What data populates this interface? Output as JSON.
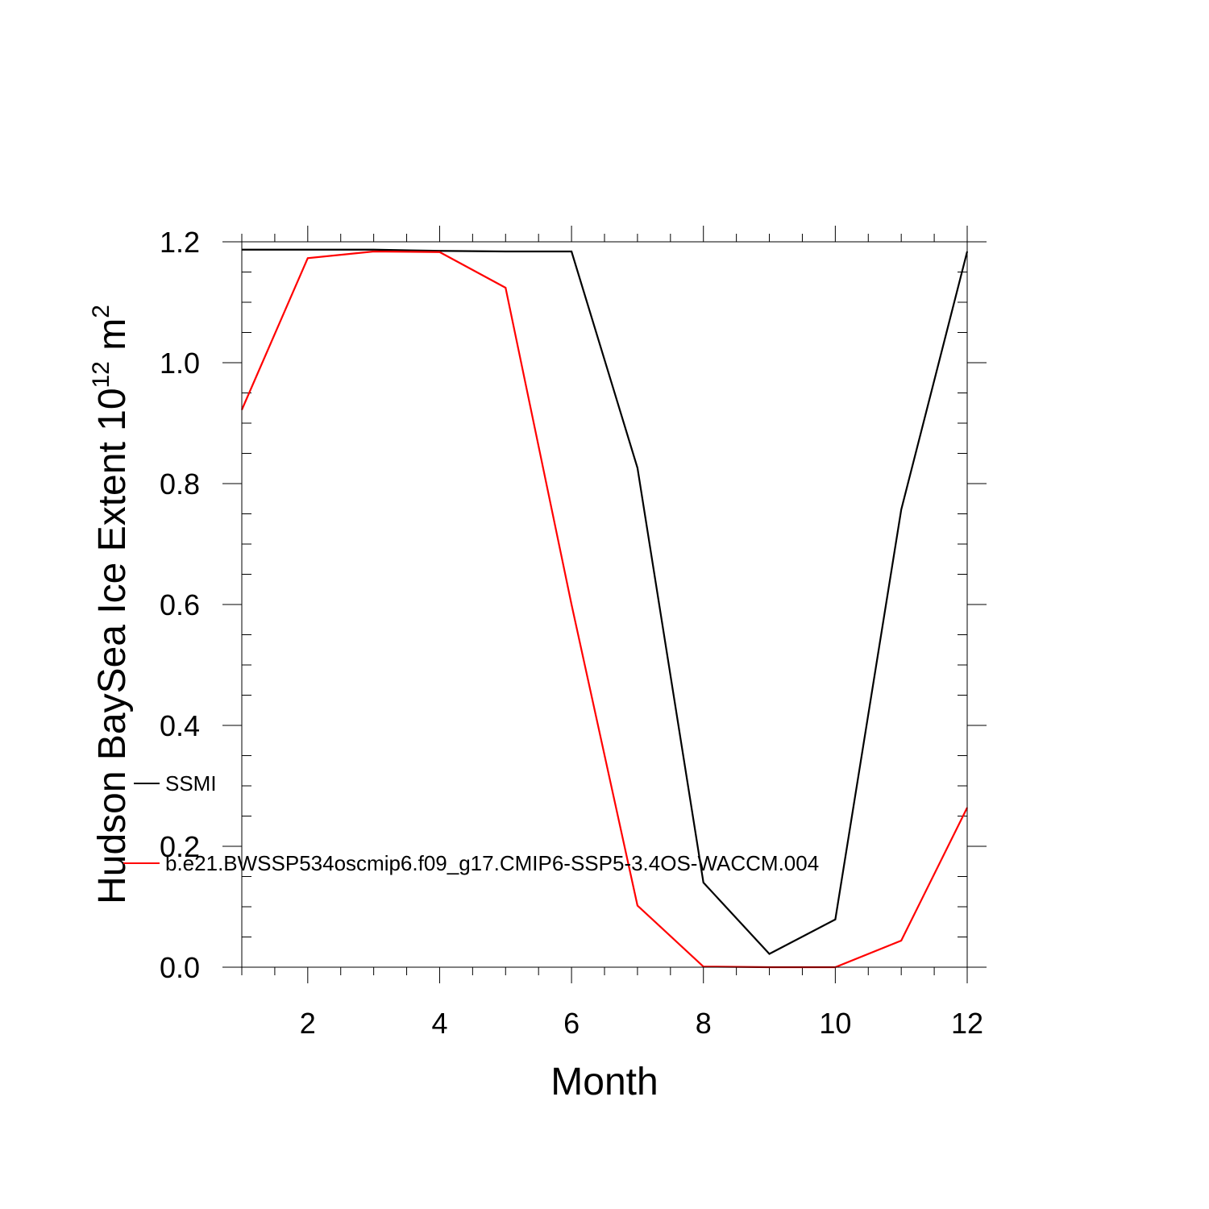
{
  "chart_data": {
    "type": "line",
    "title": "",
    "xlabel": "Month",
    "ylabel": {
      "prefix": "Hudson BaySea Ice Extent 10",
      "exponent": "12",
      "unit": " m",
      "unit_exponent": "2"
    },
    "xlim": [
      1,
      12
    ],
    "ylim": [
      0.0,
      1.2
    ],
    "x_ticks": [
      2,
      4,
      6,
      8,
      10,
      12
    ],
    "x_tick_labels": [
      "2",
      "4",
      "6",
      "8",
      "10",
      "12"
    ],
    "y_ticks": [
      0.0,
      0.2,
      0.4,
      0.6,
      0.8,
      1.0,
      1.2
    ],
    "y_tick_labels": [
      "0.0",
      "0.2",
      "0.4",
      "0.6",
      "0.8",
      "1.0",
      "1.2"
    ],
    "grid": false,
    "legend_position": "inside-left",
    "x": [
      1,
      2,
      3,
      4,
      5,
      6,
      7,
      8,
      9,
      10,
      11,
      12
    ],
    "series": [
      {
        "name": "SSMI",
        "color": "#000000",
        "values": [
          1.187,
          1.187,
          1.187,
          1.185,
          1.184,
          1.184,
          0.826,
          0.14,
          0.022,
          0.079,
          0.757,
          1.184
        ]
      },
      {
        "name": "b.e21.BWSSP534oscmip6.f09_g17.CMIP6-SSP5-3.4OS-WACCM.004",
        "color": "#ff0000",
        "values": [
          0.922,
          1.173,
          1.184,
          1.183,
          1.124,
          0.6,
          0.102,
          0.001,
          0.0,
          0.0,
          0.044,
          0.264
        ]
      }
    ]
  }
}
